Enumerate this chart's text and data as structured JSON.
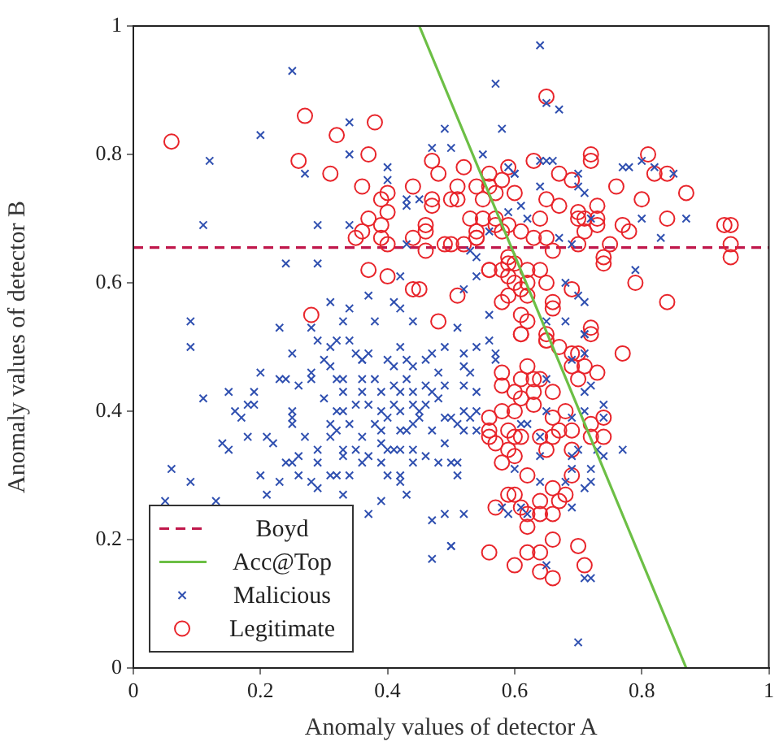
{
  "chart_data": {
    "type": "scatter",
    "xlabel": "Anomaly values of detector A",
    "ylabel": "Anomaly values of detector B",
    "xlim": [
      0,
      1
    ],
    "ylim": [
      0,
      1
    ],
    "xticks": [
      0,
      0.2,
      0.4,
      0.6,
      0.8,
      1
    ],
    "yticks": [
      0,
      0.2,
      0.4,
      0.6,
      0.8,
      1
    ],
    "legend": "bottom left",
    "ref_lines": [
      {
        "axis": "y",
        "value": 0.655,
        "label": "Boyd",
        "color": "#c0174b",
        "line_style": "dashed"
      }
    ],
    "series": [
      {
        "name": "Acc@Top",
        "type": "line",
        "color": "#6cbf45",
        "x": [
          0.45,
          0.87
        ],
        "values": [
          1,
          0
        ]
      },
      {
        "name": "Malicious",
        "marker": "cross",
        "color": "#3050b0",
        "x": [
          0.25,
          0.2,
          0.12,
          0.11,
          0.27,
          0.34,
          0.34,
          0.4,
          0.4,
          0.29,
          0.34,
          0.24,
          0.29,
          0.42,
          0.49,
          0.47,
          0.5,
          0.43,
          0.43,
          0.45,
          0.43,
          0.37,
          0.31,
          0.34,
          0.09,
          0.23,
          0.28,
          0.33,
          0.38,
          0.41,
          0.42,
          0.44,
          0.29,
          0.32,
          0.34,
          0.64,
          0.57,
          0.65,
          0.67,
          0.58,
          0.55,
          0.64,
          0.65,
          0.66,
          0.6,
          0.6,
          0.59,
          0.7,
          0.7,
          0.71,
          0.64,
          0.77,
          0.78,
          0.8,
          0.82,
          0.85,
          0.61,
          0.59,
          0.62,
          0.56,
          0.67,
          0.72,
          0.8,
          0.87,
          0.83,
          0.69,
          0.53,
          0.54,
          0.54,
          0.79,
          0.52,
          0.68,
          0.7,
          0.71,
          0.56,
          0.51,
          0.65,
          0.68,
          0.71,
          0.09,
          0.25,
          0.2,
          0.11,
          0.15,
          0.19,
          0.16,
          0.18,
          0.19,
          0.17,
          0.14,
          0.15,
          0.18,
          0.21,
          0.22,
          0.06,
          0.09,
          0.05,
          0.13,
          0.2,
          0.21,
          0.23,
          0.23,
          0.24,
          0.26,
          0.28,
          0.28,
          0.25,
          0.25,
          0.25,
          0.24,
          0.25,
          0.26,
          0.26,
          0.28,
          0.29,
          0.29,
          0.31,
          0.32,
          0.33,
          0.34,
          0.27,
          0.29,
          0.31,
          0.3,
          0.31,
          0.31,
          0.32,
          0.33,
          0.33,
          0.3,
          0.32,
          0.33,
          0.35,
          0.31,
          0.32,
          0.34,
          0.33,
          0.33,
          0.35,
          0.36,
          0.35,
          0.36,
          0.37,
          0.36,
          0.36,
          0.38,
          0.39,
          0.36,
          0.37,
          0.39,
          0.4,
          0.38,
          0.39,
          0.36,
          0.39,
          0.4,
          0.37,
          0.39,
          0.4,
          0.42,
          0.42,
          0.39,
          0.43,
          0.37,
          0.4,
          0.41,
          0.42,
          0.43,
          0.44,
          0.41,
          0.42,
          0.43,
          0.44,
          0.46,
          0.41,
          0.42,
          0.44,
          0.45,
          0.46,
          0.47,
          0.42,
          0.43,
          0.44,
          0.45,
          0.47,
          0.41,
          0.42,
          0.44,
          0.44,
          0.46,
          0.46,
          0.47,
          0.49,
          0.48,
          0.49,
          0.48,
          0.49,
          0.5,
          0.49,
          0.48,
          0.5,
          0.47,
          0.49,
          0.5,
          0.47,
          0.52,
          0.54,
          0.56,
          0.57,
          0.57,
          0.52,
          0.53,
          0.52,
          0.54,
          0.52,
          0.54,
          0.51,
          0.53,
          0.52,
          0.54,
          0.51,
          0.51,
          0.52,
          0.5,
          0.6,
          0.64,
          0.68,
          0.69,
          0.71,
          0.72,
          0.72,
          0.58,
          0.59,
          0.61,
          0.62,
          0.69,
          0.65,
          0.71,
          0.72,
          0.7,
          0.61,
          0.62,
          0.69,
          0.7,
          0.73,
          0.74,
          0.77,
          0.64,
          0.65,
          0.71,
          0.74,
          0.71,
          0.72,
          0.65,
          0.74,
          0.71,
          0.71,
          0.69,
          0.64,
          0.69
        ],
        "values": [
          0.93,
          0.83,
          0.79,
          0.69,
          0.77,
          0.85,
          0.8,
          0.78,
          0.76,
          0.69,
          0.69,
          0.63,
          0.63,
          0.61,
          0.84,
          0.81,
          0.81,
          0.73,
          0.72,
          0.73,
          0.66,
          0.58,
          0.57,
          0.56,
          0.54,
          0.53,
          0.53,
          0.54,
          0.54,
          0.57,
          0.56,
          0.54,
          0.51,
          0.51,
          0.51,
          0.97,
          0.91,
          0.88,
          0.87,
          0.84,
          0.8,
          0.79,
          0.79,
          0.79,
          0.77,
          0.77,
          0.78,
          0.77,
          0.75,
          0.74,
          0.75,
          0.78,
          0.78,
          0.79,
          0.78,
          0.77,
          0.72,
          0.71,
          0.7,
          0.68,
          0.67,
          0.7,
          0.7,
          0.7,
          0.67,
          0.66,
          0.65,
          0.64,
          0.61,
          0.62,
          0.59,
          0.6,
          0.58,
          0.57,
          0.55,
          0.53,
          0.54,
          0.54,
          0.52,
          0.5,
          0.49,
          0.46,
          0.42,
          0.43,
          0.43,
          0.4,
          0.41,
          0.41,
          0.39,
          0.35,
          0.34,
          0.36,
          0.36,
          0.35,
          0.31,
          0.29,
          0.26,
          0.26,
          0.3,
          0.27,
          0.29,
          0.45,
          0.45,
          0.44,
          0.45,
          0.46,
          0.4,
          0.39,
          0.38,
          0.32,
          0.32,
          0.33,
          0.3,
          0.29,
          0.28,
          0.32,
          0.3,
          0.3,
          0.27,
          0.3,
          0.36,
          0.34,
          0.36,
          0.48,
          0.5,
          0.47,
          0.45,
          0.43,
          0.45,
          0.42,
          0.4,
          0.4,
          0.41,
          0.38,
          0.37,
          0.38,
          0.34,
          0.33,
          0.34,
          0.32,
          0.49,
          0.48,
          0.49,
          0.48,
          0.45,
          0.45,
          0.43,
          0.43,
          0.41,
          0.4,
          0.39,
          0.38,
          0.37,
          0.36,
          0.35,
          0.34,
          0.33,
          0.32,
          0.3,
          0.29,
          0.3,
          0.26,
          0.27,
          0.24,
          0.48,
          0.47,
          0.5,
          0.48,
          0.47,
          0.44,
          0.43,
          0.45,
          0.43,
          0.44,
          0.41,
          0.4,
          0.41,
          0.4,
          0.41,
          0.43,
          0.37,
          0.37,
          0.38,
          0.39,
          0.37,
          0.34,
          0.34,
          0.34,
          0.32,
          0.33,
          0.48,
          0.49,
          0.5,
          0.46,
          0.44,
          0.42,
          0.39,
          0.39,
          0.35,
          0.32,
          0.32,
          0.23,
          0.24,
          0.19,
          0.17,
          0.49,
          0.5,
          0.51,
          0.49,
          0.48,
          0.47,
          0.46,
          0.44,
          0.43,
          0.4,
          0.4,
          0.38,
          0.39,
          0.37,
          0.37,
          0.32,
          0.3,
          0.24,
          0.19,
          0.31,
          0.29,
          0.29,
          0.31,
          0.28,
          0.29,
          0.31,
          0.25,
          0.24,
          0.25,
          0.24,
          0.25,
          0.16,
          0.14,
          0.14,
          0.04,
          0.38,
          0.38,
          0.39,
          0.34,
          0.34,
          0.33,
          0.34,
          0.33,
          0.4,
          0.4,
          0.41,
          0.43,
          0.44,
          0.45,
          0.39,
          0.52,
          0.49,
          0.48,
          0.36,
          0.33
        ]
      },
      {
        "name": "Legitimate",
        "marker": "circle",
        "color": "#e8242a",
        "x": [
          0.06,
          0.27,
          0.32,
          0.38,
          0.26,
          0.37,
          0.31,
          0.36,
          0.4,
          0.39,
          0.4,
          0.37,
          0.39,
          0.39,
          0.35,
          0.36,
          0.4,
          0.37,
          0.4,
          0.44,
          0.45,
          0.28,
          0.48,
          0.44,
          0.47,
          0.47,
          0.5,
          0.46,
          0.46,
          0.44,
          0.46,
          0.47,
          0.48,
          0.49,
          0.65,
          0.72,
          0.72,
          0.81,
          0.82,
          0.84,
          0.63,
          0.59,
          0.52,
          0.56,
          0.58,
          0.56,
          0.54,
          0.55,
          0.57,
          0.6,
          0.51,
          0.51,
          0.67,
          0.69,
          0.76,
          0.87,
          0.8,
          0.65,
          0.67,
          0.53,
          0.55,
          0.57,
          0.57,
          0.54,
          0.54,
          0.58,
          0.59,
          0.61,
          0.64,
          0.7,
          0.7,
          0.71,
          0.73,
          0.73,
          0.73,
          0.77,
          0.78,
          0.84,
          0.93,
          0.94,
          0.71,
          0.7,
          0.66,
          0.65,
          0.63,
          0.75,
          0.74,
          0.74,
          0.94,
          0.94,
          0.5,
          0.52,
          0.54,
          0.59,
          0.56,
          0.56,
          0.58,
          0.59,
          0.6,
          0.62,
          0.64,
          0.59,
          0.6,
          0.62,
          0.65,
          0.61,
          0.51,
          0.59,
          0.79,
          0.84,
          0.69,
          0.58,
          0.66,
          0.66,
          0.62,
          0.61,
          0.62,
          0.61,
          0.65,
          0.72,
          0.61,
          0.65,
          0.65,
          0.67,
          0.69,
          0.7,
          0.71,
          0.69,
          0.7,
          0.73,
          0.77,
          0.72,
          0.58,
          0.58,
          0.61,
          0.6,
          0.62,
          0.63,
          0.64,
          0.61,
          0.63,
          0.66,
          0.56,
          0.58,
          0.6,
          0.63,
          0.66,
          0.68,
          0.72,
          0.74,
          0.56,
          0.59,
          0.56,
          0.57,
          0.59,
          0.61,
          0.6,
          0.64,
          0.66,
          0.67,
          0.69,
          0.72,
          0.74,
          0.58,
          0.6,
          0.65,
          0.69,
          0.62,
          0.69,
          0.66,
          0.68,
          0.67,
          0.59,
          0.6,
          0.57,
          0.61,
          0.62,
          0.64,
          0.66,
          0.64,
          0.62,
          0.56,
          0.6,
          0.62,
          0.64,
          0.66,
          0.7,
          0.71,
          0.64,
          0.66
        ],
        "values": [
          0.82,
          0.86,
          0.83,
          0.85,
          0.79,
          0.8,
          0.77,
          0.75,
          0.74,
          0.73,
          0.71,
          0.7,
          0.69,
          0.67,
          0.67,
          0.68,
          0.66,
          0.62,
          0.61,
          0.59,
          0.59,
          0.55,
          0.54,
          0.75,
          0.73,
          0.72,
          0.73,
          0.69,
          0.68,
          0.67,
          0.65,
          0.79,
          0.77,
          0.66,
          0.89,
          0.8,
          0.79,
          0.8,
          0.77,
          0.77,
          0.79,
          0.78,
          0.78,
          0.77,
          0.76,
          0.75,
          0.75,
          0.73,
          0.74,
          0.74,
          0.73,
          0.75,
          0.77,
          0.76,
          0.75,
          0.74,
          0.73,
          0.73,
          0.72,
          0.7,
          0.7,
          0.7,
          0.69,
          0.68,
          0.67,
          0.68,
          0.69,
          0.68,
          0.7,
          0.71,
          0.7,
          0.7,
          0.7,
          0.72,
          0.69,
          0.69,
          0.68,
          0.7,
          0.69,
          0.69,
          0.68,
          0.66,
          0.65,
          0.67,
          0.67,
          0.66,
          0.64,
          0.63,
          0.66,
          0.64,
          0.66,
          0.66,
          0.67,
          0.64,
          0.62,
          0.62,
          0.62,
          0.61,
          0.63,
          0.62,
          0.62,
          0.63,
          0.6,
          0.6,
          0.6,
          0.59,
          0.58,
          0.58,
          0.6,
          0.57,
          0.59,
          0.57,
          0.57,
          0.56,
          0.58,
          0.55,
          0.54,
          0.52,
          0.52,
          0.53,
          0.52,
          0.51,
          0.51,
          0.5,
          0.49,
          0.49,
          0.47,
          0.47,
          0.45,
          0.46,
          0.49,
          0.52,
          0.46,
          0.44,
          0.45,
          0.43,
          0.47,
          0.45,
          0.45,
          0.42,
          0.43,
          0.43,
          0.39,
          0.4,
          0.4,
          0.41,
          0.39,
          0.4,
          0.38,
          0.39,
          0.37,
          0.37,
          0.36,
          0.35,
          0.34,
          0.36,
          0.36,
          0.36,
          0.36,
          0.37,
          0.37,
          0.36,
          0.36,
          0.32,
          0.33,
          0.34,
          0.34,
          0.3,
          0.3,
          0.28,
          0.27,
          0.26,
          0.27,
          0.27,
          0.25,
          0.25,
          0.24,
          0.24,
          0.24,
          0.26,
          0.22,
          0.18,
          0.16,
          0.18,
          0.18,
          0.2,
          0.19,
          0.16,
          0.15,
          0.14
        ]
      }
    ]
  }
}
